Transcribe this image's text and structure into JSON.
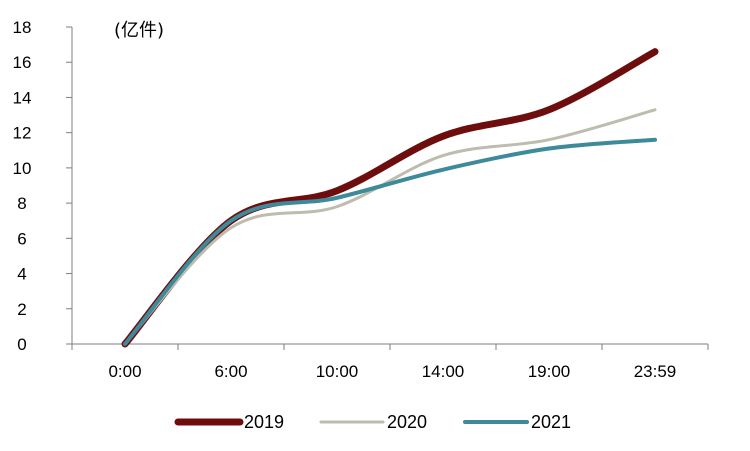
{
  "chart_data": {
    "type": "line",
    "unit_label": "(亿件)",
    "categories": [
      "0:00",
      "6:00",
      "10:00",
      "14:00",
      "19:00",
      "23:59"
    ],
    "ylim": [
      0,
      18
    ],
    "yticks": [
      "0",
      "2",
      "4",
      "6",
      "8",
      "10",
      "12",
      "14",
      "16",
      "18"
    ],
    "grid": false,
    "legend_position": "bottom",
    "series": [
      {
        "name": "2019",
        "color": "#6e0d0d",
        "width": 7,
        "values": [
          0,
          7.0,
          8.7,
          11.8,
          13.3,
          16.6
        ]
      },
      {
        "name": "2020",
        "color": "#bdbcaf",
        "width": 3,
        "values": [
          0,
          6.6,
          7.8,
          10.7,
          11.6,
          13.3
        ]
      },
      {
        "name": "2021",
        "color": "#3d8a9b",
        "width": 4,
        "values": [
          0,
          7.0,
          8.3,
          9.9,
          11.1,
          11.6
        ]
      }
    ]
  }
}
